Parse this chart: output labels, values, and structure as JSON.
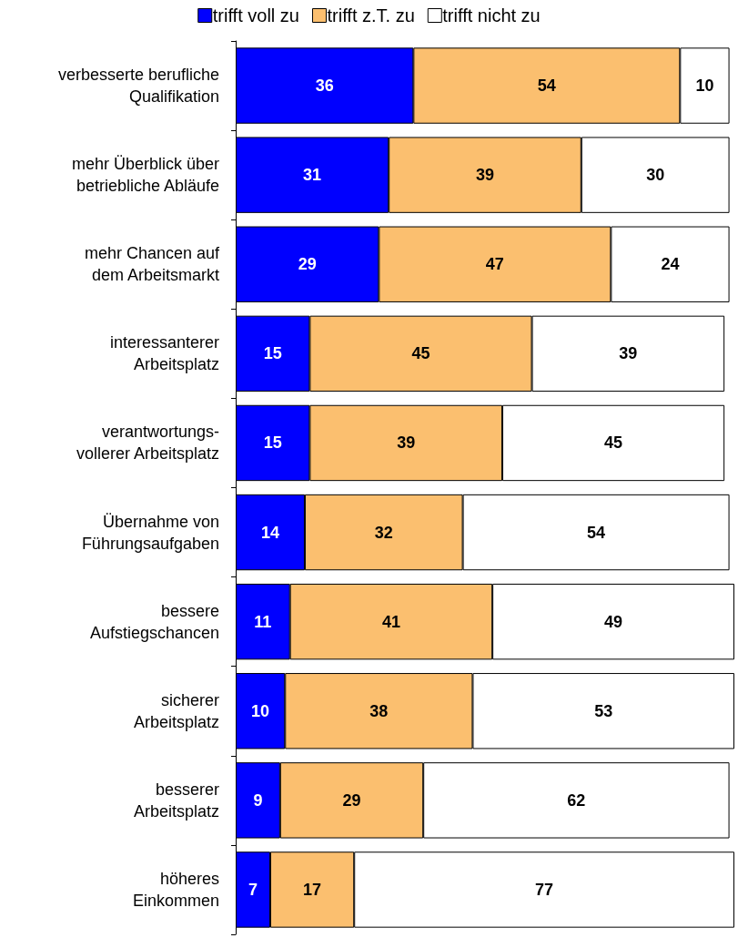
{
  "chart_data": {
    "type": "bar",
    "orientation": "horizontal",
    "stacked": true,
    "data_labels": true,
    "legend": "top",
    "grid": false,
    "categories": [
      "verbesserte berufliche\nQualifikation",
      "mehr Überblick über\nbetriebliche Abläufe",
      "mehr Chancen auf\ndem Arbeitsmarkt",
      "interessanterer\nArbeitsplatz",
      "verantwortungs-\nvollerer Arbeitsplatz",
      "Übernahme von\nFührungsaufgaben",
      "bessere\nAufstiegschancen",
      "sicherer\nArbeitsplatz",
      "besserer\nArbeitsplatz",
      "höheres\nEinkommen"
    ],
    "series": [
      {
        "name": "trifft voll zu",
        "color": "#0000ff",
        "values": [
          36,
          31,
          29,
          15,
          15,
          14,
          11,
          10,
          9,
          7
        ]
      },
      {
        "name": "trifft z.T. zu",
        "color": "#fbbf6f",
        "values": [
          54,
          39,
          47,
          45,
          39,
          32,
          41,
          38,
          29,
          17
        ]
      },
      {
        "name": "trifft nicht zu",
        "color": "#ffffff",
        "values": [
          10,
          30,
          24,
          39,
          45,
          54,
          49,
          53,
          62,
          77
        ]
      }
    ]
  }
}
